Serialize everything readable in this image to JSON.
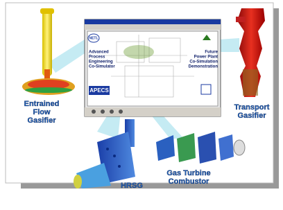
{
  "window": {
    "logo": "NETL",
    "left_lines": [
      "Advanced",
      "Process",
      "Engineering",
      "Co-Simulator"
    ],
    "right_lines": [
      "Future",
      "Power Plant",
      "Co-Simulation",
      "Demonstration"
    ],
    "brand": "APECS"
  },
  "components": {
    "entrained_flow_gasifier": [
      "Entrained",
      "Flow",
      "Gasifier"
    ],
    "transport_gasifier": [
      "Transport",
      "Gasifier"
    ],
    "hrsg": [
      "HRSG"
    ],
    "gas_turbine_combustor": [
      "Gas Turbine",
      "Combustor"
    ]
  }
}
